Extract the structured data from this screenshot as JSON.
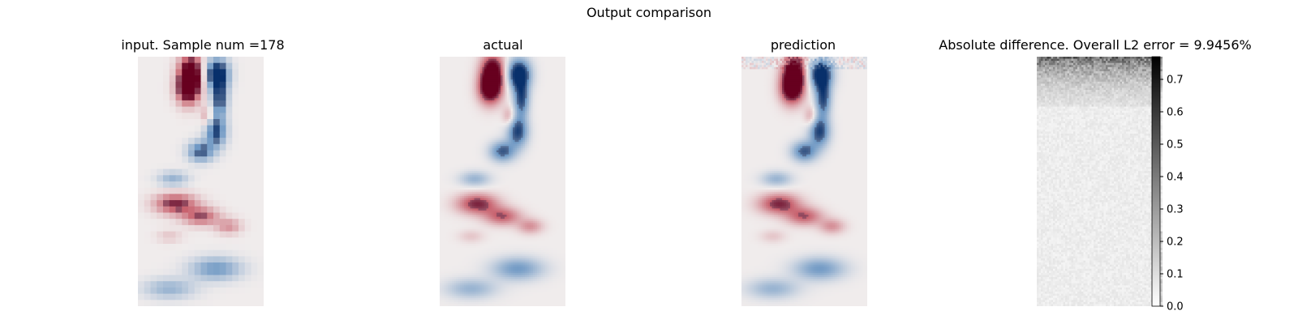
{
  "figure": {
    "suptitle": "Output comparison"
  },
  "chart_data": [
    {
      "type": "heatmap",
      "title": "input. Sample num =178",
      "field": "vortex-street",
      "resolution": "coarse",
      "colormap": "red-white-blue"
    },
    {
      "type": "heatmap",
      "title": "actual",
      "field": "vortex-street",
      "resolution": "fine",
      "colormap": "red-white-blue"
    },
    {
      "type": "heatmap",
      "title": "prediction",
      "field": "vortex-street",
      "resolution": "fine",
      "colormap": "red-white-blue",
      "noise": "edge-artifacts"
    },
    {
      "type": "heatmap",
      "title": "Absolute difference. Overall L2 error = 9.9456%",
      "field": "absolute-difference",
      "colormap": "white-black",
      "colorbar": {
        "min": 0.0,
        "max": 0.77,
        "ticks": [
          "0.0",
          "0.1",
          "0.2",
          "0.3",
          "0.4",
          "0.5",
          "0.6",
          "0.7"
        ]
      }
    }
  ]
}
